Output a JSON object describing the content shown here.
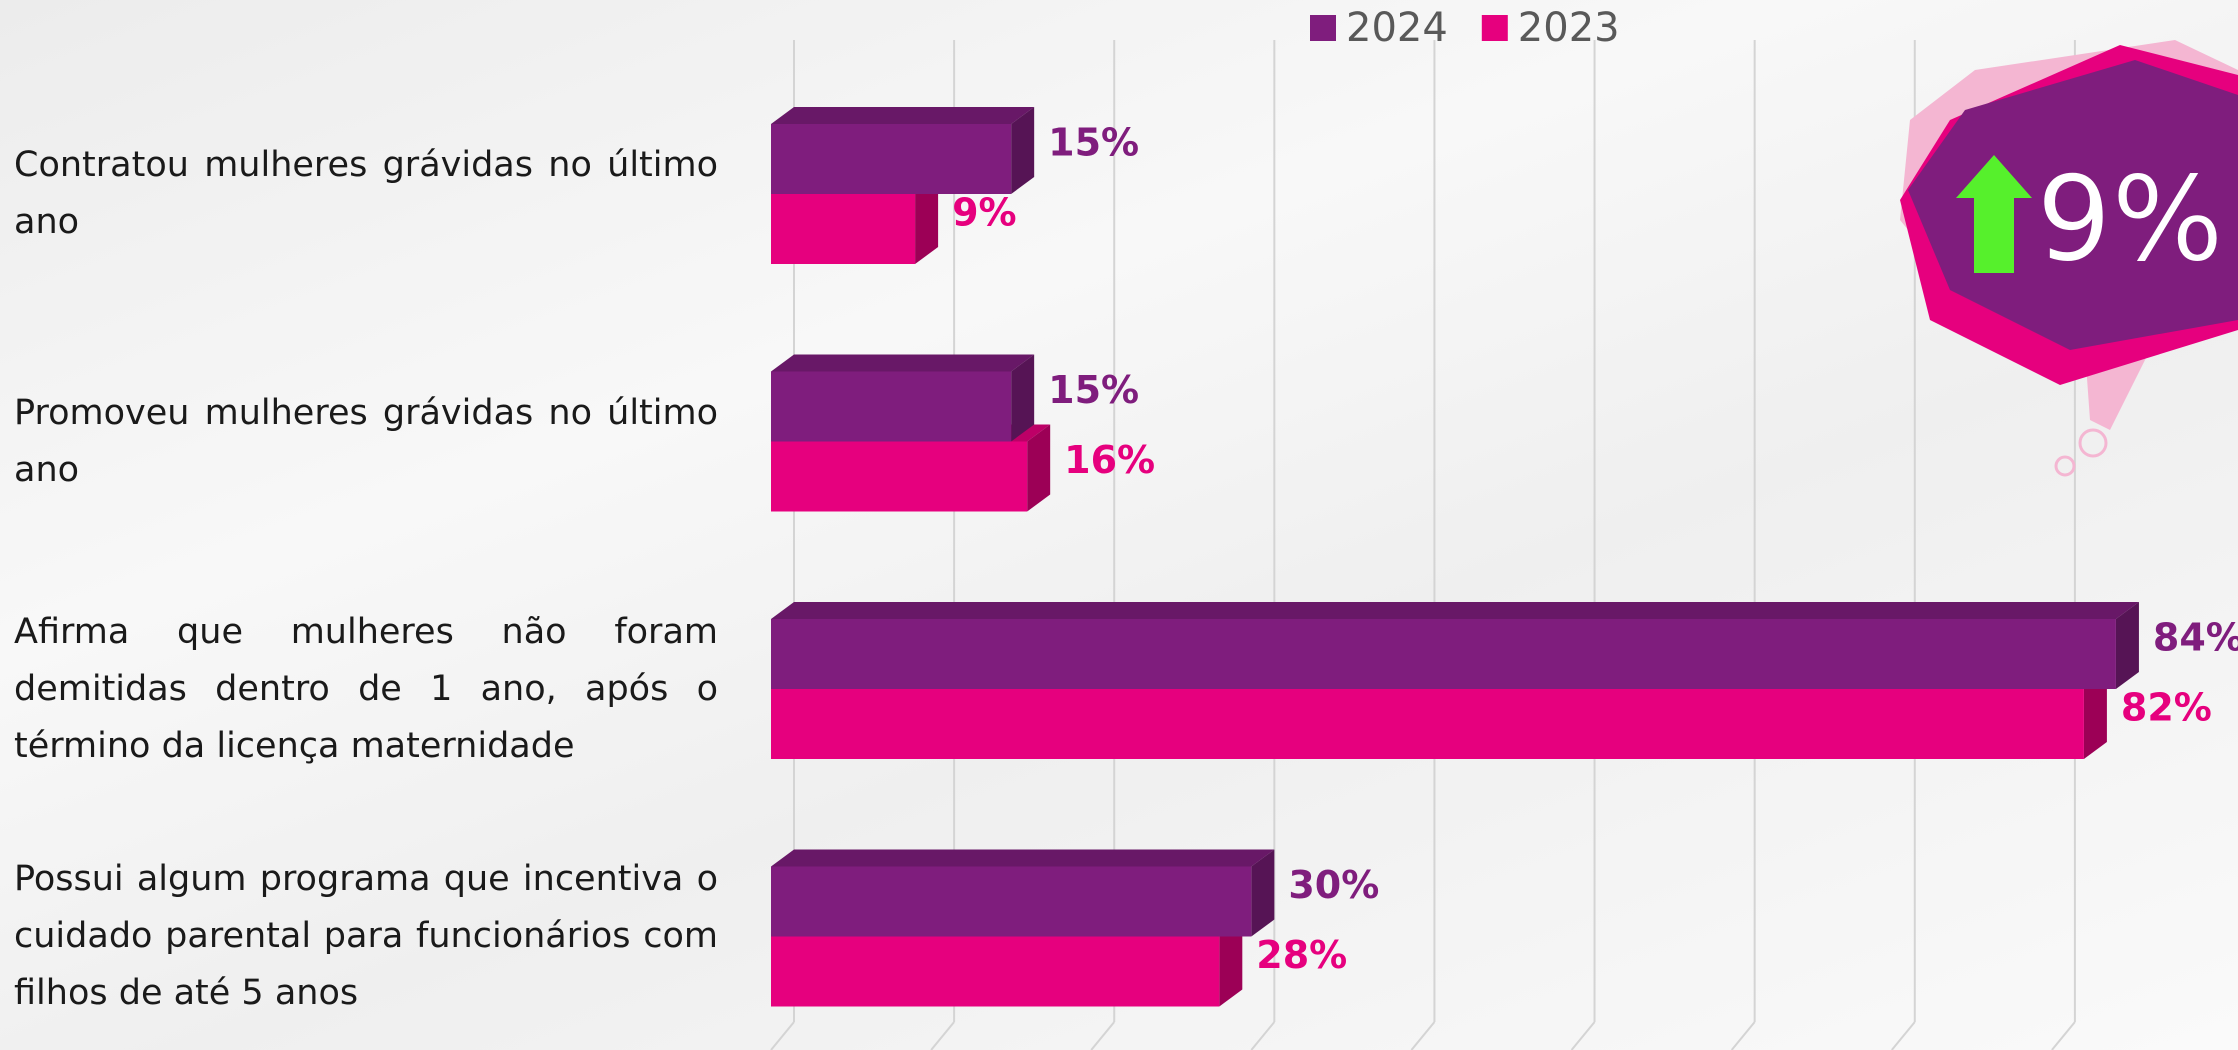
{
  "chart_data": {
    "type": "bar3d-horizontal",
    "categories": [
      "Contratou mulheres grávidas no último ano",
      "Promoveu mulheres grávidas no último ano",
      "Afirma que mulheres não foram demitidas dentro de 1 ano, após o término da licença maternidade",
      "Possui algum programa que incentiva o cuidado parental para funcionários com filhos de até 5 anos"
    ],
    "series": [
      {
        "name": "2024",
        "color": "#7f1d7d",
        "values": [
          15,
          15,
          84,
          30
        ],
        "value_labels": [
          "15%",
          "15%",
          "84%",
          "30%"
        ]
      },
      {
        "name": "2023",
        "color": "#e6007e",
        "values": [
          9,
          16,
          82,
          28
        ],
        "value_labels": [
          "9%",
          "16%",
          "82%",
          "28%"
        ]
      }
    ],
    "xlim": [
      0,
      90
    ],
    "grid": true,
    "legend": "top",
    "annotation": "9%"
  }
}
